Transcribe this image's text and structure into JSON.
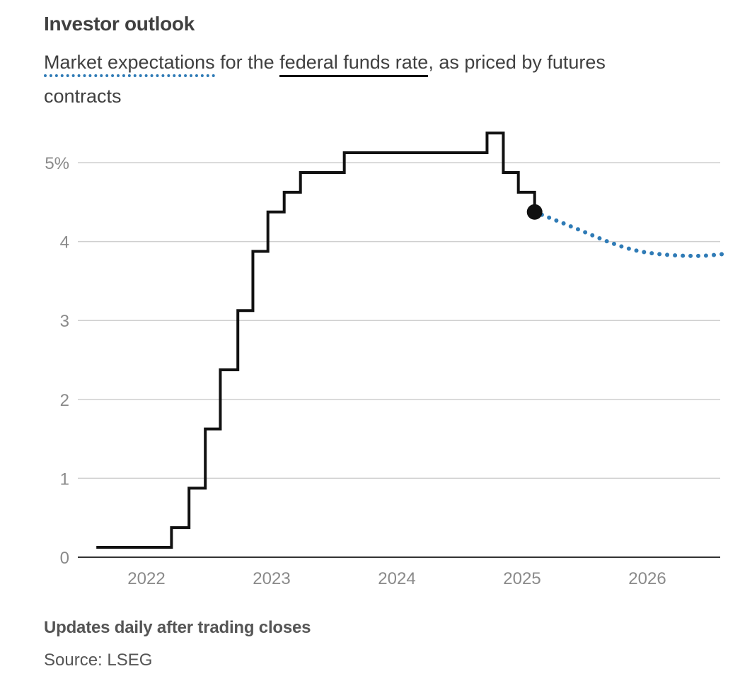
{
  "header": {
    "title": "Investor outlook",
    "subtitle_part1": "Market expectations",
    "subtitle_part2": " for the ",
    "subtitle_part3": "federal funds rate",
    "subtitle_part4": ", as priced by futures contracts"
  },
  "footer": {
    "note": "Updates daily after trading closes",
    "source": "Source: LSEG"
  },
  "colors": {
    "actual": "#111111",
    "expected": "#2f7bb6",
    "grid": "#cfcfcf",
    "axis": "#333333"
  },
  "chart_data": {
    "type": "line",
    "title": "Investor outlook",
    "xlabel": "",
    "ylabel": "",
    "x_ticks": [
      2022,
      2023,
      2024,
      2025,
      2026
    ],
    "y_ticks": [
      0,
      1,
      2,
      3,
      4,
      5
    ],
    "y_tick_labels": [
      "0",
      "1",
      "2",
      "3",
      "4",
      "5%"
    ],
    "xlim": [
      2021.55,
      2026.65
    ],
    "ylim": [
      0,
      5.4
    ],
    "grid": true,
    "series": [
      {
        "name": "federal funds rate",
        "style": "step",
        "x": [
          2021.6,
          2022.2,
          2022.34,
          2022.47,
          2022.59,
          2022.73,
          2022.85,
          2022.97,
          2023.1,
          2023.23,
          2023.58,
          2024.72,
          2024.85,
          2024.97,
          2025.1
        ],
        "y": [
          0.125,
          0.375,
          0.875,
          1.625,
          2.375,
          3.125,
          3.875,
          4.375,
          4.625,
          4.875,
          5.125,
          5.375,
          4.875,
          4.625,
          4.375
        ],
        "end_marker": {
          "x": 2025.1,
          "y": 4.375
        }
      },
      {
        "name": "Market expectations",
        "style": "dotted",
        "x": [
          2025.1,
          2025.3,
          2025.5,
          2025.7,
          2025.9,
          2026.1,
          2026.3,
          2026.45,
          2026.6
        ],
        "y": [
          4.375,
          4.25,
          4.12,
          3.99,
          3.89,
          3.84,
          3.82,
          3.82,
          3.84
        ]
      }
    ]
  }
}
